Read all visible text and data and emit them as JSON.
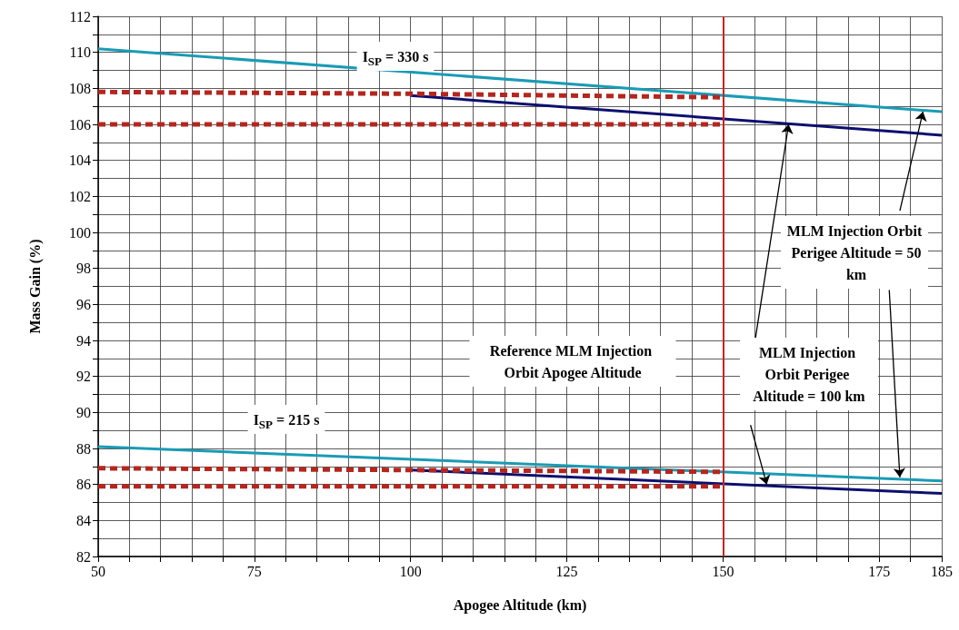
{
  "chart_data": {
    "type": "line",
    "xlabel": "Apogee Altitude (km)",
    "ylabel": "Mass Gain (%)",
    "xlim": [
      50,
      185
    ],
    "ylim": [
      82,
      112
    ],
    "xticks": [
      50,
      {
        "value": 55,
        "label": null
      },
      {
        "value": 60,
        "label": null
      },
      {
        "value": 65,
        "label": null
      },
      {
        "value": 70,
        "label": null
      },
      75,
      {
        "value": 80,
        "label": null
      },
      {
        "value": 85,
        "label": null
      },
      {
        "value": 90,
        "label": null
      },
      {
        "value": 95,
        "label": null
      },
      100,
      {
        "value": 105,
        "label": null
      },
      {
        "value": 110,
        "label": null
      },
      {
        "value": 115,
        "label": null
      },
      {
        "value": 120,
        "label": null
      },
      125,
      {
        "value": 130,
        "label": null
      },
      {
        "value": 135,
        "label": null
      },
      {
        "value": 140,
        "label": null
      },
      {
        "value": 145,
        "label": null
      },
      150,
      {
        "value": 155,
        "label": null
      },
      {
        "value": 160,
        "label": null
      },
      {
        "value": 165,
        "label": null
      },
      {
        "value": 170,
        "label": null
      },
      175,
      {
        "value": 180,
        "label": null
      },
      185
    ],
    "yticks": [
      82,
      {
        "value": 83,
        "label": null
      },
      84,
      {
        "value": 85,
        "label": null
      },
      86,
      {
        "value": 87,
        "label": null
      },
      88,
      {
        "value": 89,
        "label": null
      },
      90,
      {
        "value": 91,
        "label": null
      },
      92,
      {
        "value": 93,
        "label": null
      },
      94,
      {
        "value": 95,
        "label": null
      },
      96,
      {
        "value": 97,
        "label": null
      },
      98,
      {
        "value": 99,
        "label": null
      },
      100,
      {
        "value": 101,
        "label": null
      },
      102,
      {
        "value": 103,
        "label": null
      },
      104,
      {
        "value": 105,
        "label": null
      },
      106,
      {
        "value": 107,
        "label": null
      },
      108,
      {
        "value": 109,
        "label": null
      },
      110,
      {
        "value": 111,
        "label": null
      },
      112
    ],
    "grid": true,
    "marker": "none",
    "series": [
      {
        "color": "#1a9bb5",
        "x": [
          50,
          185
        ],
        "values": [
          110.2,
          106.7
        ]
      },
      {
        "color": "#0d0f6e",
        "x": [
          100,
          185
        ],
        "values": [
          107.6,
          105.4
        ]
      },
      {
        "color": "#b5261e",
        "line_style": "dashed",
        "x": [
          50,
          100,
          150
        ],
        "values": [
          107.8,
          107.7,
          107.5
        ]
      },
      {
        "color": "#b5261e",
        "line_style": "dashed",
        "x": [
          50,
          150
        ],
        "values": [
          106.0,
          106.0
        ]
      },
      {
        "color": "#1a9bb5",
        "x": [
          50,
          185
        ],
        "values": [
          88.1,
          86.2
        ]
      },
      {
        "color": "#0d0f6e",
        "x": [
          100,
          185
        ],
        "values": [
          86.8,
          85.5
        ]
      },
      {
        "color": "#b5261e",
        "line_style": "dashed",
        "x": [
          50,
          100,
          150
        ],
        "values": [
          86.9,
          86.8,
          86.7
        ]
      },
      {
        "color": "#b5261e",
        "line_style": "dashed",
        "x": [
          50,
          150
        ],
        "values": [
          85.9,
          85.9
        ]
      }
    ],
    "ref_lines": [
      {
        "axis": "x",
        "value": 150,
        "color": "#cc2222"
      }
    ],
    "annotations": [
      "I$_{SP}$ = 330 s",
      "I$_{SP}$ = 215 s",
      "Reference MLM Injection Orbit Apogee Altitude",
      {
        "text": "MLM Injection Orbit Perigee Altitude = 50 km",
        "x": 182,
        "y": 106.7
      },
      {
        "text": "MLM Injection Orbit Perigee Altitude = 100 km",
        "x": 160.5,
        "y": 106.0
      }
    ]
  }
}
